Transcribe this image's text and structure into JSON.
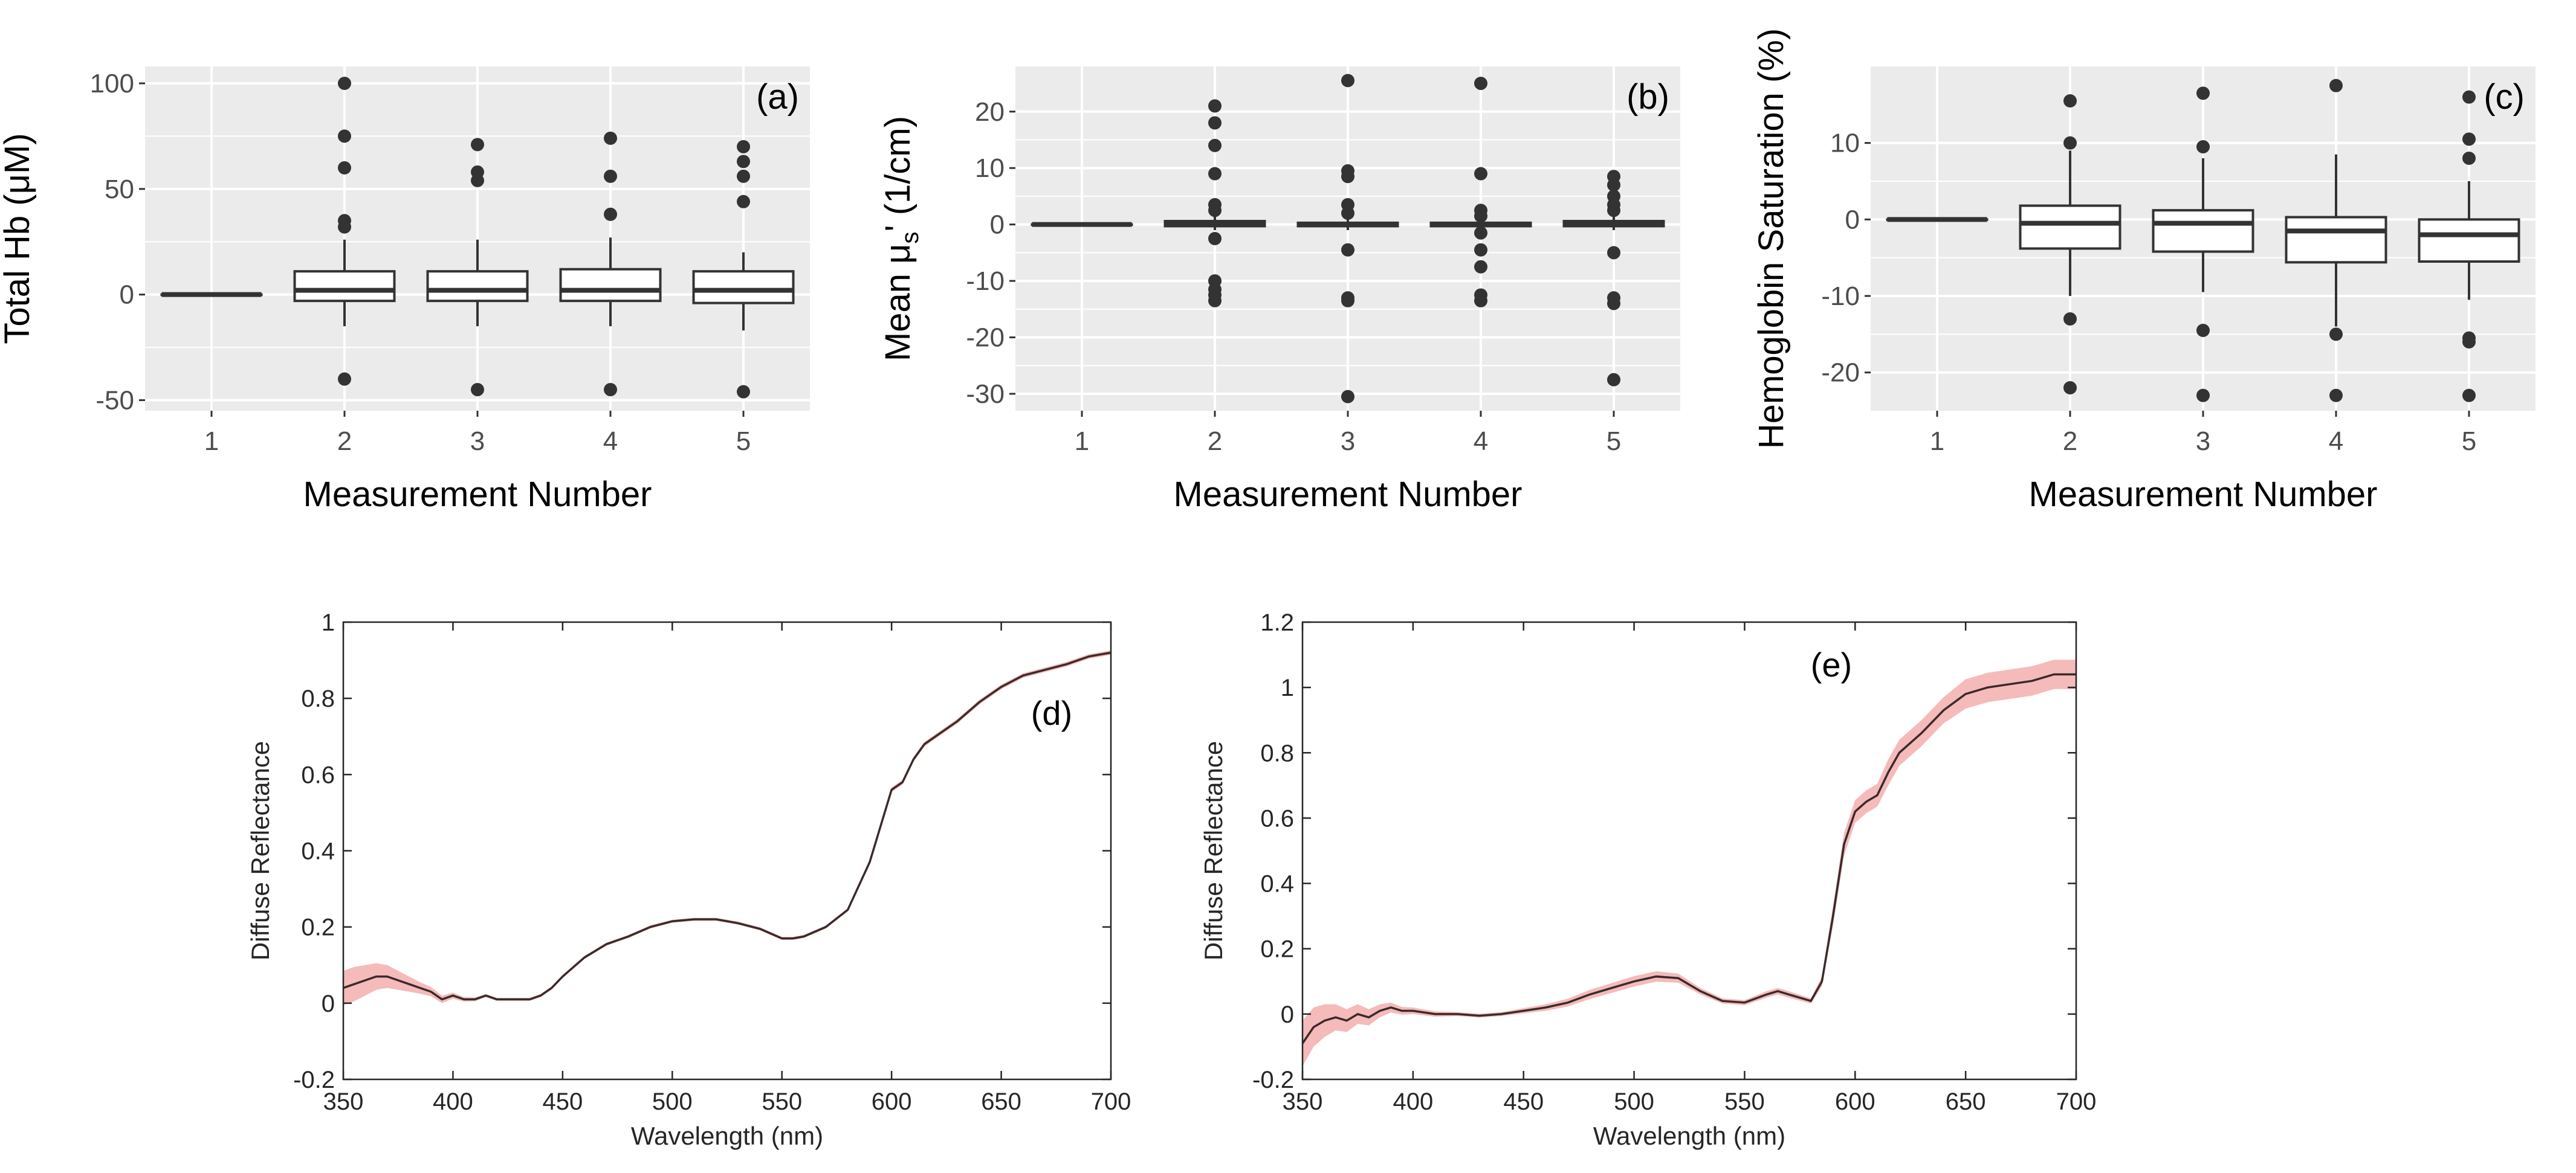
{
  "figure_colors": {
    "ggplot_panel": "#ebebeb",
    "grid": "#ffffff",
    "box_stroke": "#333333",
    "outlier": "#333333",
    "spectrum_line": "#3a2a2a",
    "spectrum_band": "#f4b6b6",
    "matlab_axis": "#262626"
  },
  "chart_data": [
    {
      "id": "a",
      "type": "boxplot",
      "panel_label": "(a)",
      "xlabel": "Measurement Number",
      "ylabel": "Total Hb (μM)",
      "categories": [
        "1",
        "2",
        "3",
        "4",
        "5"
      ],
      "ylim": [
        -55,
        108
      ],
      "yticks": [
        -50,
        0,
        50,
        100
      ],
      "ytick_labels": [
        "-50",
        "0",
        "50",
        "100"
      ],
      "boxes": [
        {
          "q1": 0,
          "median": 0,
          "q3": 0,
          "whisker_low": 0,
          "whisker_high": 0,
          "outliers": []
        },
        {
          "q1": -3,
          "median": 2,
          "q3": 11,
          "whisker_low": -15,
          "whisker_high": 26,
          "outliers": [
            100,
            75,
            60,
            35,
            32,
            -40
          ]
        },
        {
          "q1": -3,
          "median": 2,
          "q3": 11,
          "whisker_low": -15,
          "whisker_high": 26,
          "outliers": [
            71,
            58,
            54,
            -45
          ]
        },
        {
          "q1": -3,
          "median": 2,
          "q3": 12,
          "whisker_low": -15,
          "whisker_high": 27,
          "outliers": [
            74,
            56,
            38,
            -45
          ]
        },
        {
          "q1": -4,
          "median": 2,
          "q3": 11,
          "whisker_low": -17,
          "whisker_high": 20,
          "outliers": [
            70,
            63,
            56,
            44,
            -46
          ]
        }
      ]
    },
    {
      "id": "b",
      "type": "boxplot",
      "panel_label": "(b)",
      "xlabel": "Measurement Number",
      "ylabel_main": "Mean",
      "ylabel_mu": "μ",
      "ylabel_sub": "s",
      "ylabel_rest": "'  (1/cm)",
      "categories": [
        "1",
        "2",
        "3",
        "4",
        "5"
      ],
      "ylim": [
        -33,
        28
      ],
      "yticks": [
        -30,
        -20,
        -10,
        0,
        10,
        20
      ],
      "ytick_labels": [
        "-30",
        "-20",
        "-10",
        "0",
        "10",
        "20"
      ],
      "boxes": [
        {
          "q1": 0,
          "median": 0,
          "q3": 0,
          "whisker_low": 0,
          "whisker_high": 0,
          "outliers": []
        },
        {
          "q1": -0.3,
          "median": 0.1,
          "q3": 0.6,
          "whisker_low": -1,
          "whisker_high": 1.5,
          "outliers": [
            21,
            18,
            14,
            9,
            3.5,
            2.5,
            -2.5,
            -10,
            -11.5,
            -12.5,
            -13.5
          ]
        },
        {
          "q1": -0.3,
          "median": 0,
          "q3": 0.3,
          "whisker_low": -1,
          "whisker_high": 1,
          "outliers": [
            25.5,
            9.5,
            8.5,
            3.5,
            2,
            -4.5,
            -13,
            -13.5,
            -30.5
          ]
        },
        {
          "q1": -0.3,
          "median": 0,
          "q3": 0.3,
          "whisker_low": -1,
          "whisker_high": 1,
          "outliers": [
            25,
            9,
            2.5,
            1.5,
            -1.5,
            -4.5,
            -7.5,
            -12.5,
            -13.5
          ]
        },
        {
          "q1": -0.3,
          "median": 0.1,
          "q3": 0.6,
          "whisker_low": -1,
          "whisker_high": 1.5,
          "outliers": [
            8.5,
            7,
            5,
            3.5,
            2.5,
            -5,
            -13,
            -14,
            -27.5
          ]
        }
      ]
    },
    {
      "id": "c",
      "type": "boxplot",
      "panel_label": "(c)",
      "xlabel": "Measurement Number",
      "ylabel": "Hemoglobin Saturation (%)",
      "categories": [
        "1",
        "2",
        "3",
        "4",
        "5"
      ],
      "ylim": [
        -25,
        20
      ],
      "yticks": [
        -20,
        -10,
        0,
        10
      ],
      "ytick_labels": [
        "-20",
        "-10",
        "0",
        "10"
      ],
      "boxes": [
        {
          "q1": 0,
          "median": 0,
          "q3": 0,
          "whisker_low": 0,
          "whisker_high": 0,
          "outliers": []
        },
        {
          "q1": -3.8,
          "median": -0.5,
          "q3": 1.8,
          "whisker_low": -10,
          "whisker_high": 9,
          "outliers": [
            15.5,
            10,
            -13,
            -22
          ]
        },
        {
          "q1": -4.2,
          "median": -0.5,
          "q3": 1.2,
          "whisker_low": -9.5,
          "whisker_high": 8,
          "outliers": [
            16.5,
            9.5,
            -14.5,
            -23
          ]
        },
        {
          "q1": -5.6,
          "median": -1.5,
          "q3": 0.3,
          "whisker_low": -14,
          "whisker_high": 8.5,
          "outliers": [
            17.5,
            -15,
            -23
          ]
        },
        {
          "q1": -5.5,
          "median": -2,
          "q3": 0,
          "whisker_low": -10.5,
          "whisker_high": 5,
          "outliers": [
            16,
            10.5,
            8,
            -15.5,
            -16,
            -23
          ]
        }
      ]
    },
    {
      "id": "d",
      "type": "line",
      "panel_label": "(d)",
      "xlabel": "Wavelength (nm)",
      "ylabel": "Diffuse Reflectance",
      "xlim": [
        350,
        700
      ],
      "ylim": [
        -0.2,
        1
      ],
      "xticks": [
        350,
        400,
        450,
        500,
        550,
        600,
        650,
        700
      ],
      "xtick_labels": [
        "350",
        "400",
        "450",
        "500",
        "550",
        "600",
        "650",
        "700"
      ],
      "yticks": [
        -0.2,
        0,
        0.2,
        0.4,
        0.6,
        0.8,
        1
      ],
      "ytick_labels": [
        "-0.2",
        "0",
        "0.2",
        "0.4",
        "0.6",
        "0.8",
        "1"
      ],
      "x": [
        350,
        355,
        360,
        365,
        370,
        375,
        380,
        385,
        390,
        395,
        400,
        405,
        410,
        415,
        420,
        425,
        430,
        435,
        440,
        445,
        450,
        460,
        470,
        480,
        490,
        500,
        510,
        520,
        530,
        540,
        550,
        555,
        560,
        570,
        580,
        590,
        600,
        605,
        610,
        615,
        620,
        630,
        640,
        650,
        660,
        670,
        680,
        690,
        700
      ],
      "mean": [
        0.04,
        0.05,
        0.06,
        0.07,
        0.07,
        0.06,
        0.05,
        0.04,
        0.03,
        0.01,
        0.02,
        0.01,
        0.01,
        0.02,
        0.01,
        0.01,
        0.01,
        0.01,
        0.02,
        0.04,
        0.07,
        0.12,
        0.155,
        0.175,
        0.2,
        0.215,
        0.22,
        0.22,
        0.21,
        0.195,
        0.17,
        0.17,
        0.175,
        0.2,
        0.245,
        0.37,
        0.56,
        0.58,
        0.64,
        0.68,
        0.7,
        0.74,
        0.79,
        0.83,
        0.86,
        0.875,
        0.89,
        0.91,
        0.92
      ],
      "band": [
        0.045,
        0.045,
        0.04,
        0.035,
        0.03,
        0.025,
        0.02,
        0.015,
        0.012,
        0.01,
        0.008,
        0.006,
        0.005,
        0.004,
        0.004,
        0.004,
        0.004,
        0.004,
        0.004,
        0.004,
        0.004,
        0.004,
        0.004,
        0.004,
        0.004,
        0.004,
        0.004,
        0.004,
        0.004,
        0.004,
        0.004,
        0.004,
        0.004,
        0.004,
        0.004,
        0.004,
        0.006,
        0.006,
        0.006,
        0.006,
        0.006,
        0.006,
        0.006,
        0.006,
        0.006,
        0.006,
        0.006,
        0.006,
        0.006
      ]
    },
    {
      "id": "e",
      "type": "line",
      "panel_label": "(e)",
      "xlabel": "Wavelength (nm)",
      "ylabel": "Diffuse Reflectance",
      "xlim": [
        350,
        700
      ],
      "ylim": [
        -0.2,
        1.2
      ],
      "xticks": [
        350,
        400,
        450,
        500,
        550,
        600,
        650,
        700
      ],
      "xtick_labels": [
        "350",
        "400",
        "450",
        "500",
        "550",
        "600",
        "650",
        "700"
      ],
      "yticks": [
        -0.2,
        0,
        0.2,
        0.4,
        0.6,
        0.8,
        1,
        1.2
      ],
      "ytick_labels": [
        "-0.2",
        "0",
        "0.2",
        "0.4",
        "0.6",
        "0.8",
        "1",
        "1.2"
      ],
      "x": [
        350,
        355,
        360,
        365,
        370,
        375,
        380,
        385,
        390,
        395,
        400,
        410,
        420,
        430,
        440,
        450,
        460,
        470,
        480,
        490,
        500,
        510,
        520,
        530,
        540,
        550,
        560,
        565,
        570,
        580,
        585,
        590,
        595,
        600,
        605,
        610,
        615,
        620,
        630,
        640,
        650,
        660,
        670,
        680,
        690,
        700
      ],
      "mean": [
        -0.09,
        -0.04,
        -0.02,
        -0.01,
        -0.02,
        0.0,
        -0.01,
        0.01,
        0.02,
        0.01,
        0.01,
        0.0,
        0.0,
        -0.005,
        0.0,
        0.01,
        0.02,
        0.035,
        0.06,
        0.08,
        0.1,
        0.115,
        0.11,
        0.07,
        0.04,
        0.035,
        0.06,
        0.07,
        0.06,
        0.04,
        0.1,
        0.3,
        0.52,
        0.62,
        0.65,
        0.67,
        0.74,
        0.8,
        0.86,
        0.93,
        0.98,
        1.0,
        1.01,
        1.02,
        1.04,
        1.04
      ],
      "band": [
        0.07,
        0.06,
        0.05,
        0.04,
        0.035,
        0.03,
        0.025,
        0.02,
        0.015,
        0.012,
        0.01,
        0.008,
        0.006,
        0.006,
        0.006,
        0.008,
        0.01,
        0.012,
        0.014,
        0.015,
        0.016,
        0.016,
        0.014,
        0.01,
        0.008,
        0.008,
        0.01,
        0.01,
        0.01,
        0.008,
        0.015,
        0.03,
        0.035,
        0.035,
        0.035,
        0.035,
        0.04,
        0.04,
        0.04,
        0.04,
        0.045,
        0.045,
        0.045,
        0.045,
        0.045,
        0.045
      ]
    }
  ]
}
